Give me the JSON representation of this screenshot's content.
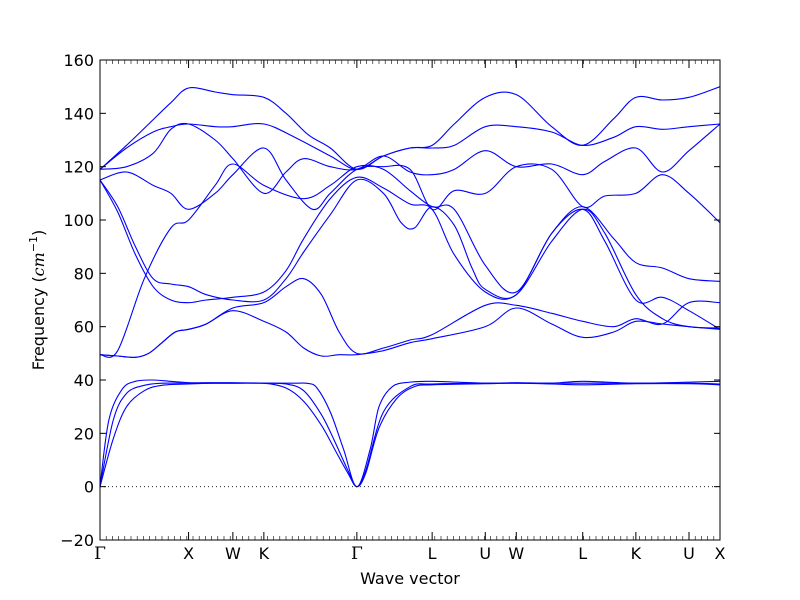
{
  "chart_data": {
    "type": "line",
    "title": "",
    "xlabel": "Wave vector",
    "ylabel_text": "Frequency (",
    "ylabel_unit_base": "cm",
    "ylabel_unit_exp": "−1",
    "ylabel_close": ")",
    "ylim": [
      -20,
      160
    ],
    "xlim": [
      0,
      7.0
    ],
    "yticks": [
      -20,
      0,
      20,
      40,
      60,
      80,
      100,
      120,
      140,
      160
    ],
    "ytick_labels": [
      "−20",
      "0",
      "20",
      "40",
      "60",
      "80",
      "100",
      "120",
      "140",
      "160"
    ],
    "high_symmetry_points": [
      {
        "label": "Γ",
        "x": 0.0
      },
      {
        "label": "X",
        "x": 1.0
      },
      {
        "label": "W",
        "x": 1.5
      },
      {
        "label": "K",
        "x": 1.85
      },
      {
        "label": "Γ",
        "x": 2.9
      },
      {
        "label": "L",
        "x": 3.75
      },
      {
        "label": "U",
        "x": 4.35
      },
      {
        "label": "W",
        "x": 4.7
      },
      {
        "label": "L",
        "x": 5.45
      },
      {
        "label": "K",
        "x": 6.05
      },
      {
        "label": "U",
        "x": 6.65
      },
      {
        "label": "X",
        "x": 7.0
      }
    ],
    "zero_line": true,
    "line_color": "#0000ff",
    "series": [
      {
        "x": [
          0.0,
          0.15,
          0.3,
          0.5,
          0.7,
          1.0,
          1.3,
          1.5,
          1.85,
          2.1,
          2.3,
          2.5,
          2.65,
          2.8,
          2.9,
          3.0,
          3.2,
          3.5,
          3.75,
          4.35,
          4.7,
          5.1,
          5.45,
          6.05,
          6.65,
          7.0
        ],
        "y": [
          0,
          25,
          35,
          38,
          38.8,
          38.8,
          38.8,
          38.8,
          38.8,
          38.5,
          36,
          27,
          17,
          6,
          0,
          6,
          28,
          37.5,
          38.5,
          38.8,
          38.8,
          38.8,
          38.8,
          38.8,
          38.8,
          38.5
        ]
      },
      {
        "x": [
          0.0,
          0.15,
          0.3,
          0.5,
          0.7,
          1.0,
          1.3,
          1.5,
          1.85,
          2.1,
          2.3,
          2.5,
          2.65,
          2.8,
          2.9,
          3.0,
          3.15,
          3.35,
          3.55,
          3.75,
          4.35,
          4.7,
          5.1,
          5.45,
          6.05,
          6.65,
          7.0
        ],
        "y": [
          0,
          18,
          30,
          36,
          38,
          38.5,
          38.8,
          38.8,
          38.8,
          37,
          32,
          23,
          14,
          5,
          0,
          5,
          22,
          33,
          37.5,
          38.2,
          38.6,
          38.8,
          38.5,
          38.2,
          38.6,
          38.6,
          38.2
        ]
      },
      {
        "x": [
          0.0,
          0.1,
          0.25,
          0.4,
          0.6,
          0.8,
          1.0,
          1.3,
          1.5,
          1.85,
          2.2,
          2.35,
          2.45,
          2.6,
          2.75,
          2.9,
          3.05,
          3.15,
          3.3,
          3.5,
          3.75,
          4.35,
          4.7,
          5.1,
          5.45,
          6.05,
          6.65,
          7.0
        ],
        "y": [
          0,
          25,
          36.5,
          39.5,
          40,
          39.5,
          39,
          39,
          39,
          38.8,
          38.8,
          38.7,
          37,
          28,
          14,
          0,
          14,
          30,
          37.5,
          39.2,
          39.5,
          38.8,
          39,
          38.8,
          39.5,
          38.8,
          39.2,
          39.5
        ]
      },
      {
        "x": [
          0.0,
          0.2,
          0.4,
          0.55,
          0.7,
          0.85,
          1.0,
          1.2,
          1.5,
          1.85,
          2.1,
          2.3,
          2.5,
          2.7,
          2.9,
          3.2,
          3.5,
          3.75,
          4.35,
          4.7,
          5.1,
          5.45,
          5.8,
          6.05,
          6.35,
          6.65,
          7.0
        ],
        "y": [
          49.5,
          49,
          48.5,
          50,
          54,
          58,
          59,
          61,
          67,
          69,
          75,
          78,
          72,
          58,
          50,
          52,
          55,
          57,
          68,
          68,
          65,
          62,
          60,
          63,
          61,
          69,
          69
        ]
      },
      {
        "x": [
          0.0,
          0.2,
          0.4,
          0.55,
          0.7,
          0.85,
          1.0,
          1.2,
          1.5,
          1.85,
          2.1,
          2.3,
          2.5,
          2.7,
          2.9,
          3.2,
          3.5,
          3.75,
          4.35,
          4.7,
          5.1,
          5.45,
          5.8,
          6.05,
          6.35,
          6.65,
          7.0
        ],
        "y": [
          49.5,
          49,
          48.5,
          50,
          54,
          58,
          59,
          61,
          66,
          62,
          58,
          52,
          49,
          49.5,
          49.5,
          51,
          54,
          55.5,
          60,
          67,
          61,
          56,
          58,
          62,
          61,
          60,
          59
        ]
      },
      {
        "x": [
          0.0,
          0.2,
          0.5,
          0.8,
          1.0,
          1.3,
          1.5,
          1.85,
          2.3,
          2.6,
          2.9,
          3.2,
          3.5,
          3.75,
          4.0,
          4.35,
          4.7,
          5.1,
          5.45,
          5.8,
          6.05,
          6.35,
          6.65,
          7.0
        ],
        "y": [
          49.5,
          51,
          78,
          97,
          100,
          113,
          121,
          113,
          108,
          113,
          120,
          119,
          111,
          105,
          104,
          83,
          73,
          95,
          105,
          93,
          84,
          82,
          78,
          77
        ]
      },
      {
        "x": [
          0.0,
          0.2,
          0.4,
          0.6,
          0.8,
          1.0,
          1.2,
          1.5,
          1.85,
          2.1,
          2.3,
          2.6,
          2.9,
          3.2,
          3.4,
          3.55,
          3.75,
          4.0,
          4.2,
          4.35,
          4.7,
          5.1,
          5.45,
          5.7,
          6.05,
          6.35,
          6.65,
          7.0
        ],
        "y": [
          115,
          105,
          90,
          78,
          76,
          75,
          72,
          70,
          70,
          78,
          88,
          102,
          115,
          110,
          99,
          97,
          105,
          98,
          82,
          74,
          72,
          95,
          104,
          92,
          70,
          71,
          66,
          59
        ]
      },
      {
        "x": [
          0.0,
          0.2,
          0.4,
          0.6,
          0.8,
          1.0,
          1.2,
          1.5,
          1.85,
          2.1,
          2.3,
          2.6,
          2.9,
          3.2,
          3.5,
          3.75,
          4.0,
          4.35,
          4.7,
          5.1,
          5.45,
          5.7,
          6.05,
          6.35,
          6.65,
          7.0
        ],
        "y": [
          115,
          103,
          87,
          75,
          70,
          69,
          70,
          71,
          73,
          81,
          93,
          108,
          116,
          112,
          106,
          104,
          87,
          73,
          72,
          92,
          104,
          95,
          72,
          63,
          60,
          59.5
        ]
      },
      {
        "x": [
          0.0,
          0.3,
          0.6,
          0.8,
          1.0,
          1.3,
          1.5,
          1.85,
          2.1,
          2.3,
          2.6,
          2.9,
          3.2,
          3.5,
          3.75,
          4.0,
          4.35,
          4.7,
          5.1,
          5.45,
          5.7,
          6.05,
          6.35,
          6.65,
          7.0
        ],
        "y": [
          119,
          120,
          125,
          134,
          136,
          130,
          123,
          110,
          118,
          123,
          120,
          119,
          124,
          118,
          117,
          119,
          126,
          120,
          121,
          117,
          122,
          127,
          118,
          126,
          136
        ]
      },
      {
        "x": [
          0.0,
          0.3,
          0.6,
          0.8,
          1.0,
          1.3,
          1.5,
          1.85,
          2.1,
          2.4,
          2.6,
          2.9,
          3.2,
          3.5,
          3.75,
          4.0,
          4.35,
          4.7,
          5.1,
          5.45,
          5.7,
          6.05,
          6.35,
          6.65,
          7.0
        ],
        "y": [
          115,
          118,
          113,
          110,
          104,
          110,
          117,
          127,
          115,
          104,
          110,
          119,
          120,
          119,
          104,
          111,
          110,
          120,
          119,
          105,
          109,
          110,
          117,
          110,
          99
        ]
      },
      {
        "x": [
          0.0,
          0.3,
          0.6,
          0.8,
          1.0,
          1.3,
          1.5,
          1.85,
          2.2,
          2.6,
          2.9,
          3.2,
          3.5,
          3.75,
          4.0,
          4.35,
          4.7,
          5.1,
          5.45,
          5.8,
          6.05,
          6.35,
          6.65,
          7.0
        ],
        "y": [
          119,
          127,
          133,
          135,
          136,
          135,
          135,
          136,
          131,
          124,
          119,
          124,
          127,
          127,
          128,
          135,
          135,
          133,
          128,
          131,
          135,
          134,
          135,
          136
        ]
      },
      {
        "x": [
          0.0,
          0.3,
          0.55,
          0.8,
          1.0,
          1.3,
          1.5,
          1.85,
          2.1,
          2.35,
          2.6,
          2.9,
          3.2,
          3.5,
          3.75,
          4.0,
          4.35,
          4.7,
          5.1,
          5.45,
          5.8,
          6.05,
          6.35,
          6.65,
          7.0
        ],
        "y": [
          119,
          128,
          136,
          144,
          149.5,
          148,
          147,
          146,
          140,
          132,
          127,
          119,
          124,
          127,
          128,
          136,
          146,
          147,
          135,
          128,
          138,
          146,
          145,
          146,
          150
        ]
      }
    ]
  }
}
